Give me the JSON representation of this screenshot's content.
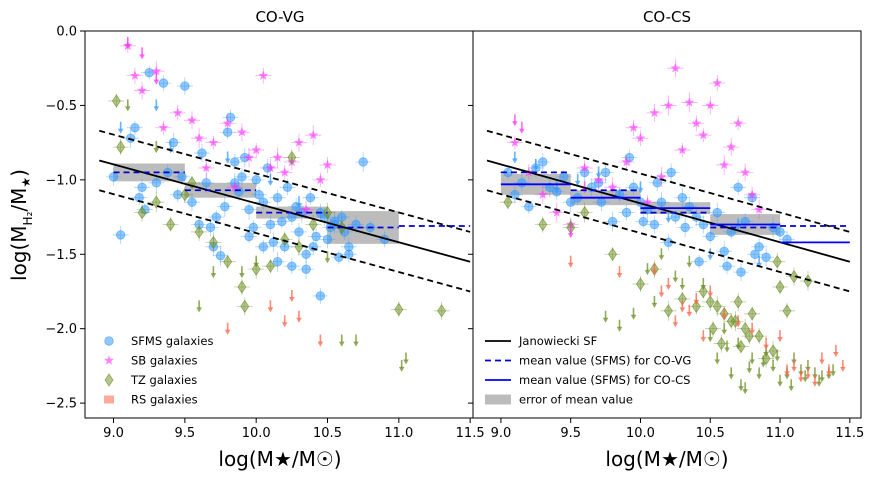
{
  "chart_data": [
    {
      "type": "scatter",
      "panel": "left",
      "title": "CO-VG",
      "xlabel": "log(M★/M☉)",
      "ylabel": "log(M_H₂/M★)",
      "xlim": [
        8.8,
        11.52
      ],
      "ylim": [
        -2.6,
        0.0
      ],
      "xticks": [
        9.0,
        9.5,
        10.0,
        10.5,
        11.0,
        11.5
      ],
      "xtick_labels": [
        "9.0",
        "9.5",
        "10.0",
        "10.5",
        "11.0",
        "11.5"
      ],
      "yticks": [
        0.0,
        -0.5,
        -1.0,
        -1.5,
        -2.0,
        -2.5
      ],
      "ytick_labels": [
        "0.0",
        "−0.5",
        "−1.0",
        "−1.5",
        "−2.0",
        "−2.5"
      ],
      "legend": {
        "placement": "lower-left",
        "entries": [
          "SFMS galaxies",
          "SB galaxies",
          "TZ galaxies",
          "RS galaxies"
        ]
      },
      "lines": [
        {
          "name": "Janowiecki SF",
          "style": "solid",
          "x": [
            8.9,
            11.5
          ],
          "y": [
            -0.87,
            -1.55
          ]
        },
        {
          "name": "Janowiecki SF upper",
          "style": "dashed",
          "x": [
            8.9,
            11.5
          ],
          "y": [
            -0.67,
            -1.35
          ]
        },
        {
          "name": "Janowiecki SF lower",
          "style": "dashed",
          "x": [
            8.9,
            11.5
          ],
          "y": [
            -1.07,
            -1.75
          ]
        }
      ],
      "bins": [
        {
          "x0": 9.0,
          "x1": 9.5,
          "mean": -0.95,
          "err": 0.06
        },
        {
          "x0": 9.5,
          "x1": 10.0,
          "mean": -1.07,
          "err": 0.05
        },
        {
          "x0": 10.0,
          "x1": 10.5,
          "mean": -1.22,
          "err": 0.04
        },
        {
          "x0": 10.5,
          "x1": 11.0,
          "mean": -1.32,
          "err": 0.11
        },
        {
          "x0": 11.0,
          "x1": 11.5,
          "mean": -1.31,
          "err": 0.0
        }
      ],
      "series": [
        {
          "name": "SFMS galaxies",
          "marker": "circle",
          "color": "#3399ff",
          "x": [
            9.25,
            9.35,
            9.5,
            9.42,
            9.15,
            9.2,
            9.05,
            9.3,
            9.45,
            9.6,
            9.7,
            9.75,
            9.8,
            9.85,
            9.9,
            9.95,
            10.0,
            10.05,
            10.1,
            10.15,
            10.2,
            10.25,
            10.3,
            10.35,
            10.4,
            10.45,
            10.5,
            10.55,
            10.6,
            10.65,
            10.7,
            10.75,
            10.8,
            10.9,
            9.0,
            9.12,
            9.22,
            9.38,
            9.55,
            9.65,
            9.72,
            9.82,
            9.88,
            9.92,
            9.98,
            10.02,
            10.08,
            10.12,
            10.18,
            10.22,
            10.28,
            10.32,
            10.38,
            10.42,
            10.48,
            10.52,
            10.58,
            10.62,
            9.62,
            9.78,
            9.95,
            10.15,
            10.35,
            10.55,
            9.18,
            9.48,
            9.68,
            9.85,
            10.05,
            10.25,
            10.45,
            10.65
          ],
          "y": [
            -0.28,
            -0.35,
            -0.37,
            -0.75,
            -0.65,
            -1.05,
            -1.37,
            -1.02,
            -1.1,
            -1.3,
            -1.45,
            -1.51,
            -0.68,
            -0.88,
            -0.98,
            -1.2,
            -1.0,
            -1.15,
            -1.3,
            -1.55,
            -1.45,
            -1.25,
            -1.35,
            -1.6,
            -1.45,
            -1.78,
            -1.4,
            -1.3,
            -1.25,
            -1.5,
            -1.3,
            -0.88,
            -1.32,
            -1.4,
            -0.98,
            -0.72,
            -1.2,
            -0.95,
            -1.15,
            -1.02,
            -1.25,
            -0.58,
            -1.08,
            -0.85,
            -1.32,
            -1.1,
            -0.92,
            -1.42,
            -1.28,
            -1.05,
            -1.18,
            -1.22,
            -1.12,
            -1.38,
            -1.25,
            -1.32,
            -1.52,
            -1.35,
            -0.82,
            -1.18,
            -1.38,
            -1.12,
            -1.5,
            -1.28,
            -1.12,
            -0.98,
            -1.32,
            -1.02,
            -1.45,
            -1.58,
            -1.22,
            -1.45
          ]
        },
        {
          "name": "SB galaxies",
          "marker": "star",
          "color": "#ff33ff",
          "x": [
            9.1,
            9.15,
            9.2,
            9.3,
            9.35,
            9.45,
            9.55,
            9.6,
            9.7,
            9.8,
            9.9,
            9.95,
            10.0,
            10.05,
            10.1,
            10.15,
            10.2,
            10.25,
            10.3,
            10.4,
            10.45,
            10.5,
            10.35,
            9.65,
            9.85
          ],
          "y": [
            -0.1,
            -0.3,
            -0.4,
            -0.27,
            -0.65,
            -0.55,
            -0.6,
            -0.72,
            -0.75,
            -0.62,
            -0.68,
            -0.85,
            -0.8,
            -0.3,
            -0.92,
            -0.85,
            -0.95,
            -0.88,
            -0.75,
            -0.7,
            -1.0,
            -0.9,
            -1.2,
            -0.92,
            -1.05
          ]
        },
        {
          "name": "TZ galaxies",
          "marker": "diamond",
          "color": "#6b8e23",
          "x": [
            9.02,
            9.05,
            9.2,
            9.3,
            9.4,
            9.5,
            9.6,
            9.7,
            9.8,
            9.9,
            9.92,
            10.0,
            10.1,
            10.2,
            10.3,
            10.4,
            10.6,
            11.0,
            11.3,
            10.5,
            9.55,
            10.25
          ],
          "y": [
            -0.47,
            -0.78,
            -1.22,
            -1.15,
            -1.3,
            -1.1,
            -1.35,
            -1.42,
            -1.55,
            -1.72,
            -1.85,
            -1.6,
            -1.58,
            -1.4,
            -1.45,
            -1.3,
            -1.32,
            -1.87,
            -1.88,
            -1.22,
            -1.02,
            -0.85
          ]
        },
        {
          "name": "RS galaxies",
          "marker": "square",
          "color": "#ff6347",
          "x": [],
          "y": []
        }
      ],
      "upper_limits": [
        {
          "color": "#3399ff",
          "x": [
            9.05,
            9.3,
            9.4,
            9.8,
            10.1,
            10.3
          ],
          "y": [
            -0.65,
            -0.5,
            -0.78,
            -0.85,
            -1.0,
            -1.15
          ]
        },
        {
          "color": "#ff33ff",
          "x": [
            9.1,
            9.2,
            9.3
          ],
          "y": [
            -0.08,
            -0.15,
            -0.32
          ]
        },
        {
          "color": "#6b8e23",
          "x": [
            9.1,
            9.3,
            9.6,
            9.7,
            9.9,
            10.0,
            10.5,
            10.6,
            10.7,
            11.02,
            11.05
          ],
          "y": [
            -0.5,
            -0.78,
            -1.85,
            -1.62,
            -1.62,
            -1.55,
            -1.52,
            -2.08,
            -2.08,
            -2.25,
            -2.2
          ]
        },
        {
          "color": "#ff6347",
          "x": [
            9.8,
            10.1,
            10.2,
            10.25,
            10.3,
            10.45
          ],
          "y": [
            -2.0,
            -1.85,
            -1.95,
            -1.78,
            -1.92,
            -2.08
          ]
        }
      ]
    },
    {
      "type": "scatter",
      "panel": "right",
      "title": "CO-CS",
      "xlabel": "log(M★/M☉)",
      "xlim": [
        8.8,
        11.58
      ],
      "ylim": [
        -2.6,
        0.0
      ],
      "xticks": [
        9.0,
        9.5,
        10.0,
        10.5,
        11.0,
        11.5
      ],
      "xtick_labels": [
        "9.0",
        "9.5",
        "10.0",
        "10.5",
        "11.0",
        "11.5"
      ],
      "legend": {
        "placement": "lower-left",
        "entries": [
          "Janowiecki SF",
          "mean value (SFMS) for CO-VG",
          "mean value (SFMS) for CO-CS",
          "error of mean value"
        ]
      },
      "lines": [
        {
          "name": "Janowiecki SF",
          "style": "solid",
          "x": [
            8.9,
            11.5
          ],
          "y": [
            -0.87,
            -1.55
          ]
        },
        {
          "name": "Janowiecki SF upper",
          "style": "dashed",
          "x": [
            8.9,
            11.5
          ],
          "y": [
            -0.67,
            -1.35
          ]
        },
        {
          "name": "Janowiecki SF lower",
          "style": "dashed",
          "x": [
            8.9,
            11.5
          ],
          "y": [
            -1.07,
            -1.75
          ]
        }
      ],
      "bins_covg": [
        {
          "x0": 9.0,
          "x1": 9.5,
          "mean": -0.95
        },
        {
          "x0": 9.5,
          "x1": 10.0,
          "mean": -1.07
        },
        {
          "x0": 10.0,
          "x1": 10.5,
          "mean": -1.22
        },
        {
          "x0": 10.5,
          "x1": 11.0,
          "mean": -1.32
        },
        {
          "x0": 11.0,
          "x1": 11.5,
          "mean": -1.31
        }
      ],
      "bins_cocs": [
        {
          "x0": 9.0,
          "x1": 9.5,
          "mean": -1.03,
          "err": 0.07
        },
        {
          "x0": 9.5,
          "x1": 10.0,
          "mean": -1.12,
          "err": 0.05
        },
        {
          "x0": 10.0,
          "x1": 10.5,
          "mean": -1.19,
          "err": 0.04
        },
        {
          "x0": 10.5,
          "x1": 11.0,
          "mean": -1.3,
          "err": 0.07
        },
        {
          "x0": 11.0,
          "x1": 11.5,
          "mean": -1.42,
          "err": 0.0
        }
      ],
      "series": [
        {
          "name": "SFMS galaxies",
          "marker": "circle",
          "color": "#3399ff",
          "x": [
            9.05,
            9.15,
            9.25,
            9.35,
            9.45,
            9.55,
            9.65,
            9.75,
            9.85,
            9.95,
            10.05,
            10.15,
            10.25,
            10.35,
            10.45,
            10.55,
            10.65,
            10.75,
            10.85,
            10.95,
            11.05,
            9.1,
            9.3,
            9.5,
            9.7,
            9.9,
            10.1,
            10.3,
            10.5,
            10.7,
            10.9,
            11.0,
            9.2,
            9.4,
            9.6,
            9.8,
            10.0,
            10.2,
            10.4,
            10.6,
            10.8,
            10.12,
            10.22,
            10.32,
            10.42,
            10.62,
            10.72,
            10.82,
            10.02,
            9.92,
            9.72
          ],
          "y": [
            -0.95,
            -1.02,
            -0.92,
            -1.05,
            -0.98,
            -1.12,
            -1.05,
            -0.95,
            -1.1,
            -1.05,
            -1.2,
            -1.15,
            -1.25,
            -1.18,
            -1.3,
            -1.22,
            -1.35,
            -1.28,
            -1.45,
            -1.32,
            -1.4,
            -1.1,
            -0.88,
            -1.15,
            -1.02,
            -1.22,
            -1.3,
            -1.12,
            -1.38,
            -1.05,
            -1.52,
            -1.35,
            -1.18,
            -1.08,
            -0.95,
            -1.28,
            -1.15,
            -1.42,
            -1.25,
            -1.48,
            -1.12,
            -1.02,
            -0.95,
            -1.32,
            -1.55,
            -1.58,
            -1.62,
            -1.5,
            -1.28,
            -0.85,
            -1.15
          ]
        },
        {
          "name": "SB galaxies",
          "marker": "star",
          "color": "#ff33ff",
          "x": [
            9.1,
            9.2,
            9.3,
            9.4,
            9.5,
            9.6,
            9.7,
            9.8,
            9.9,
            10.0,
            10.1,
            10.2,
            10.3,
            10.4,
            10.5,
            10.6,
            10.7,
            10.8,
            10.25,
            10.35,
            10.45,
            10.55,
            10.65,
            10.15,
            10.05,
            9.95,
            10.75,
            10.85
          ],
          "y": [
            -0.75,
            -0.95,
            -1.1,
            -1.22,
            -1.3,
            -0.92,
            -1.0,
            -1.05,
            -0.88,
            -0.72,
            -0.55,
            -0.5,
            -0.8,
            -0.62,
            -0.5,
            -0.9,
            -0.62,
            -1.1,
            -0.25,
            -0.48,
            -0.7,
            -0.35,
            -0.78,
            -0.98,
            -1.15,
            -0.65,
            -0.95,
            -1.2
          ]
        },
        {
          "name": "TZ galaxies",
          "marker": "diamond",
          "color": "#6b8e23",
          "x": [
            9.05,
            9.3,
            9.5,
            9.6,
            9.8,
            10.0,
            10.1,
            10.2,
            10.3,
            10.4,
            10.5,
            10.55,
            10.6,
            10.65,
            10.7,
            10.75,
            10.8,
            10.85,
            10.9,
            10.95,
            11.0,
            11.05,
            11.1,
            11.2,
            10.45,
            10.52,
            10.58,
            10.68,
            10.72,
            10.78,
            10.98
          ],
          "y": [
            -1.15,
            -1.3,
            -1.32,
            -1.22,
            -1.5,
            -1.7,
            -1.6,
            -1.88,
            -1.8,
            -1.85,
            -1.82,
            -1.85,
            -1.9,
            -1.95,
            -1.82,
            -2.0,
            -1.9,
            -2.05,
            -2.2,
            -2.15,
            -1.72,
            -1.88,
            -1.65,
            -1.68,
            -1.75,
            -2.0,
            -2.1,
            -1.95,
            -2.12,
            -2.05,
            -1.55
          ]
        },
        {
          "name": "RS galaxies",
          "marker": "square",
          "color": "#ff6347",
          "x": [],
          "y": []
        }
      ],
      "upper_limits": [
        {
          "color": "#3399ff",
          "x": [
            9.1,
            9.25,
            9.4,
            9.55,
            9.7,
            9.85,
            10.0,
            10.2,
            10.5,
            10.7,
            10.85
          ],
          "y": [
            -0.85,
            -0.9,
            -1.05,
            -1.0,
            -0.95,
            -1.1,
            -1.05,
            -1.25,
            -1.5,
            -1.3,
            -1.55
          ]
        },
        {
          "color": "#ff33ff",
          "x": [
            9.1,
            9.15,
            9.5,
            9.6
          ],
          "y": [
            -0.6,
            -0.65,
            -1.35,
            -1.05
          ]
        },
        {
          "color": "#6b8e23",
          "x": [
            9.95,
            10.05,
            10.15,
            10.25,
            10.35,
            10.45,
            10.55,
            10.6,
            10.65,
            10.7,
            10.75,
            10.8,
            10.85,
            10.9,
            10.95,
            11.0,
            11.05,
            11.1,
            11.15,
            11.2,
            11.25,
            11.3,
            11.35,
            9.75,
            9.85,
            10.1,
            10.3,
            10.5,
            10.72,
            10.88,
            10.98,
            11.08,
            11.18,
            11.28,
            11.38,
            10.62,
            10.78
          ],
          "y": [
            -1.9,
            -1.6,
            -1.5,
            -1.65,
            -1.55,
            -1.7,
            -2.2,
            -2.0,
            -2.3,
            -2.1,
            -2.4,
            -2.2,
            -2.3,
            -2.15,
            -2.25,
            -2.35,
            -2.3,
            -2.2,
            -2.28,
            -2.25,
            -2.3,
            -2.32,
            -2.3,
            -1.92,
            -1.98,
            -1.82,
            -1.7,
            -2.05,
            -2.38,
            -2.22,
            -2.18,
            -2.38,
            -2.32,
            -2.35,
            -2.28,
            -2.12,
            -2.26
          ]
        },
        {
          "color": "#ff6347",
          "x": [
            9.5,
            9.85,
            10.1,
            10.2,
            10.3,
            10.4,
            10.5,
            10.6,
            10.7,
            10.8,
            10.9,
            11.0,
            11.1,
            11.2,
            11.3,
            11.4,
            11.45,
            10.15,
            10.25,
            10.35,
            10.45,
            11.05,
            11.15,
            11.25,
            11.35
          ],
          "y": [
            -1.55,
            -1.62,
            -1.6,
            -1.7,
            -1.85,
            -1.8,
            -1.75,
            -1.9,
            -1.95,
            -2.0,
            -2.1,
            -2.05,
            -2.25,
            -2.3,
            -2.2,
            -2.15,
            -2.25,
            -1.75,
            -1.95,
            -1.88,
            -2.05,
            -2.28,
            -2.32,
            -2.35,
            -2.28
          ]
        }
      ]
    }
  ]
}
